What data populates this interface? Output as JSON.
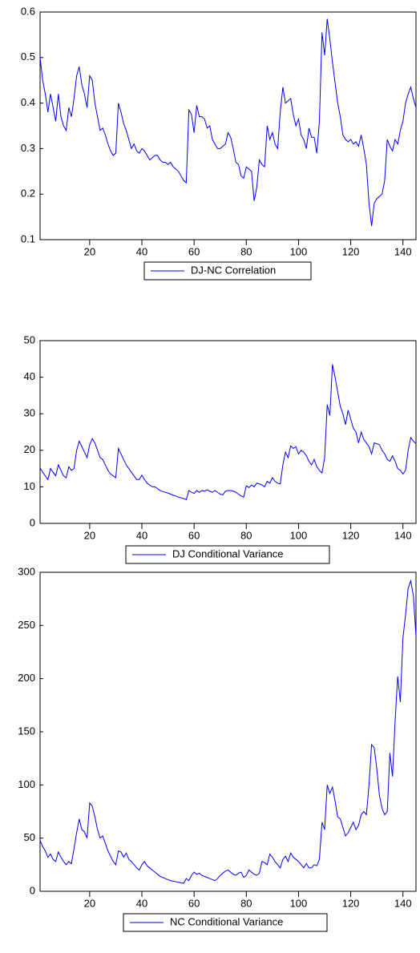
{
  "chart_data": [
    {
      "type": "line",
      "legend": "bottom",
      "x": [
        1,
        2,
        3,
        4,
        5,
        6,
        7,
        8,
        9,
        10,
        11,
        12,
        13,
        14,
        15,
        16,
        17,
        18,
        19,
        20,
        21,
        22,
        23,
        24,
        25,
        26,
        27,
        28,
        29,
        30,
        31,
        32,
        33,
        34,
        35,
        36,
        37,
        38,
        39,
        40,
        41,
        42,
        43,
        44,
        45,
        46,
        47,
        48,
        49,
        50,
        51,
        52,
        53,
        54,
        55,
        56,
        57,
        58,
        59,
        60,
        61,
        62,
        63,
        64,
        65,
        66,
        67,
        68,
        69,
        70,
        71,
        72,
        73,
        74,
        75,
        76,
        77,
        78,
        79,
        80,
        81,
        82,
        83,
        84,
        85,
        86,
        87,
        88,
        89,
        90,
        91,
        92,
        93,
        94,
        95,
        96,
        97,
        98,
        99,
        100,
        101,
        102,
        103,
        104,
        105,
        106,
        107,
        108,
        109,
        110,
        111,
        112,
        113,
        114,
        115,
        116,
        117,
        118,
        119,
        120,
        121,
        122,
        123,
        124,
        125,
        126,
        127,
        128,
        129,
        130,
        131,
        132,
        133,
        134,
        135,
        136,
        137,
        138,
        139,
        140,
        141,
        142,
        143,
        144,
        145
      ],
      "xlim": [
        1,
        145
      ],
      "xticks": [
        20,
        40,
        60,
        80,
        100,
        120,
        140
      ],
      "ylim": [
        0.1,
        0.6
      ],
      "yticks": [
        0.1,
        0.2,
        0.3,
        0.4,
        0.5,
        0.6
      ],
      "series": [
        {
          "name": "DJ-NC Correlation",
          "color": "#0000ff",
          "values": [
            0.5,
            0.45,
            0.42,
            0.38,
            0.42,
            0.39,
            0.36,
            0.42,
            0.37,
            0.35,
            0.34,
            0.39,
            0.37,
            0.41,
            0.46,
            0.48,
            0.44,
            0.42,
            0.39,
            0.46,
            0.45,
            0.4,
            0.37,
            0.34,
            0.345,
            0.33,
            0.31,
            0.295,
            0.285,
            0.29,
            0.4,
            0.38,
            0.355,
            0.34,
            0.32,
            0.3,
            0.31,
            0.295,
            0.29,
            0.3,
            0.295,
            0.285,
            0.275,
            0.28,
            0.285,
            0.285,
            0.275,
            0.27,
            0.27,
            0.265,
            0.27,
            0.26,
            0.255,
            0.25,
            0.24,
            0.23,
            0.225,
            0.385,
            0.375,
            0.335,
            0.395,
            0.37,
            0.37,
            0.365,
            0.345,
            0.35,
            0.32,
            0.31,
            0.3,
            0.3,
            0.305,
            0.31,
            0.335,
            0.325,
            0.3,
            0.27,
            0.265,
            0.24,
            0.235,
            0.26,
            0.255,
            0.25,
            0.185,
            0.215,
            0.275,
            0.265,
            0.26,
            0.35,
            0.32,
            0.335,
            0.31,
            0.3,
            0.38,
            0.435,
            0.4,
            0.405,
            0.41,
            0.375,
            0.35,
            0.365,
            0.33,
            0.32,
            0.3,
            0.345,
            0.325,
            0.325,
            0.29,
            0.36,
            0.555,
            0.505,
            0.585,
            0.54,
            0.49,
            0.445,
            0.4,
            0.37,
            0.33,
            0.32,
            0.315,
            0.32,
            0.31,
            0.315,
            0.305,
            0.33,
            0.3,
            0.265,
            0.18,
            0.13,
            0.18,
            0.19,
            0.195,
            0.2,
            0.23,
            0.32,
            0.305,
            0.295,
            0.32,
            0.31,
            0.34,
            0.36,
            0.4,
            0.42,
            0.435,
            0.41,
            0.39
          ]
        }
      ]
    },
    {
      "type": "line",
      "legend": "bottom",
      "x": [
        1,
        2,
        3,
        4,
        5,
        6,
        7,
        8,
        9,
        10,
        11,
        12,
        13,
        14,
        15,
        16,
        17,
        18,
        19,
        20,
        21,
        22,
        23,
        24,
        25,
        26,
        27,
        28,
        29,
        30,
        31,
        32,
        33,
        34,
        35,
        36,
        37,
        38,
        39,
        40,
        41,
        42,
        43,
        44,
        45,
        46,
        47,
        48,
        49,
        50,
        51,
        52,
        53,
        54,
        55,
        56,
        57,
        58,
        59,
        60,
        61,
        62,
        63,
        64,
        65,
        66,
        67,
        68,
        69,
        70,
        71,
        72,
        73,
        74,
        75,
        76,
        77,
        78,
        79,
        80,
        81,
        82,
        83,
        84,
        85,
        86,
        87,
        88,
        89,
        90,
        91,
        92,
        93,
        94,
        95,
        96,
        97,
        98,
        99,
        100,
        101,
        102,
        103,
        104,
        105,
        106,
        107,
        108,
        109,
        110,
        111,
        112,
        113,
        114,
        115,
        116,
        117,
        118,
        119,
        120,
        121,
        122,
        123,
        124,
        125,
        126,
        127,
        128,
        129,
        130,
        131,
        132,
        133,
        134,
        135,
        136,
        137,
        138,
        139,
        140,
        141,
        142,
        143,
        144,
        145
      ],
      "xlim": [
        1,
        145
      ],
      "xticks": [
        20,
        40,
        60,
        80,
        100,
        120,
        140
      ],
      "ylim": [
        0,
        50
      ],
      "yticks": [
        0,
        10,
        20,
        30,
        40,
        50
      ],
      "series": [
        {
          "name": "DJ Conditional Variance",
          "color": "#0000ff",
          "values": [
            15.2,
            14,
            13,
            12,
            15,
            14,
            13,
            16,
            14.5,
            13,
            12.5,
            15.5,
            14.5,
            15,
            20,
            22.5,
            21,
            19.5,
            18,
            21.5,
            23.2,
            22,
            20,
            18,
            17.5,
            16,
            14.5,
            13.5,
            13,
            12.5,
            20.5,
            19,
            17.5,
            16,
            15,
            14,
            13,
            12,
            12,
            13.2,
            12,
            11,
            10.5,
            10,
            10,
            9.5,
            9,
            8.7,
            8.5,
            8.3,
            8,
            7.7,
            7.5,
            7.2,
            7,
            6.8,
            6.5,
            9,
            8.5,
            8.2,
            9,
            8.5,
            9,
            8.8,
            9.2,
            8.8,
            8.5,
            9,
            8.5,
            8,
            7.8,
            8.8,
            9,
            9,
            8.8,
            8.5,
            8,
            7.5,
            7.2,
            10.3,
            9.8,
            10.5,
            10,
            11,
            10.8,
            10.5,
            10,
            11.5,
            11,
            12.5,
            11.5,
            11,
            10.8,
            16,
            19.5,
            18,
            21.2,
            20.5,
            21,
            19,
            20,
            19.5,
            18.5,
            17,
            16,
            17.5,
            15.5,
            14.5,
            13.8,
            18,
            32.5,
            29.5,
            43.5,
            40,
            36,
            32,
            30,
            27,
            31,
            28.5,
            26,
            25,
            22,
            25,
            23,
            22,
            21,
            19,
            22,
            21.8,
            21.5,
            20,
            19,
            17.5,
            17,
            18.5,
            17,
            15,
            14.5,
            13.5,
            14.5,
            20,
            23.5,
            22.5,
            21.8
          ]
        }
      ]
    },
    {
      "type": "line",
      "legend": "bottom",
      "x": [
        1,
        2,
        3,
        4,
        5,
        6,
        7,
        8,
        9,
        10,
        11,
        12,
        13,
        14,
        15,
        16,
        17,
        18,
        19,
        20,
        21,
        22,
        23,
        24,
        25,
        26,
        27,
        28,
        29,
        30,
        31,
        32,
        33,
        34,
        35,
        36,
        37,
        38,
        39,
        40,
        41,
        42,
        43,
        44,
        45,
        46,
        47,
        48,
        49,
        50,
        51,
        52,
        53,
        54,
        55,
        56,
        57,
        58,
        59,
        60,
        61,
        62,
        63,
        64,
        65,
        66,
        67,
        68,
        69,
        70,
        71,
        72,
        73,
        74,
        75,
        76,
        77,
        78,
        79,
        80,
        81,
        82,
        83,
        84,
        85,
        86,
        87,
        88,
        89,
        90,
        91,
        92,
        93,
        94,
        95,
        96,
        97,
        98,
        99,
        100,
        101,
        102,
        103,
        104,
        105,
        106,
        107,
        108,
        109,
        110,
        111,
        112,
        113,
        114,
        115,
        116,
        117,
        118,
        119,
        120,
        121,
        122,
        123,
        124,
        125,
        126,
        127,
        128,
        129,
        130,
        131,
        132,
        133,
        134,
        135,
        136,
        137,
        138,
        139,
        140,
        141,
        142,
        143,
        144,
        145
      ],
      "xlim": [
        1,
        145
      ],
      "xticks": [
        20,
        40,
        60,
        80,
        100,
        120,
        140
      ],
      "ylim": [
        0,
        300
      ],
      "yticks": [
        0,
        50,
        100,
        150,
        200,
        250,
        300
      ],
      "series": [
        {
          "name": "NC Conditional Variance",
          "color": "#0000ff",
          "values": [
            48,
            42,
            38,
            32,
            35,
            30,
            28,
            37,
            32,
            28,
            25,
            28,
            26,
            40,
            55,
            68,
            58,
            56,
            50,
            83,
            80,
            70,
            58,
            50,
            52,
            45,
            38,
            33,
            28,
            25,
            38,
            37,
            32,
            36,
            30,
            28,
            25,
            22,
            20,
            25,
            28,
            24,
            22,
            20,
            18,
            16,
            14,
            13,
            12,
            11,
            10,
            9.5,
            9,
            8.5,
            8,
            7.5,
            12,
            10,
            15,
            18,
            16,
            17,
            15,
            14,
            13,
            12,
            11,
            10,
            12,
            15,
            17,
            19,
            20,
            18,
            16,
            15,
            17,
            18,
            13,
            15,
            20,
            18,
            16,
            15,
            17,
            28,
            27,
            25,
            35,
            32,
            28,
            25,
            22,
            30,
            33,
            28,
            36,
            32,
            30,
            28,
            25,
            22,
            26,
            22,
            22,
            25,
            24,
            30,
            65,
            58,
            100,
            92,
            98,
            85,
            70,
            68,
            60,
            52,
            55,
            60,
            65,
            58,
            62,
            72,
            75,
            72,
            100,
            138,
            135,
            115,
            90,
            78,
            72,
            75,
            130,
            108,
            160,
            202,
            178,
            238,
            260,
            285,
            292,
            278,
            240
          ]
        }
      ]
    }
  ]
}
